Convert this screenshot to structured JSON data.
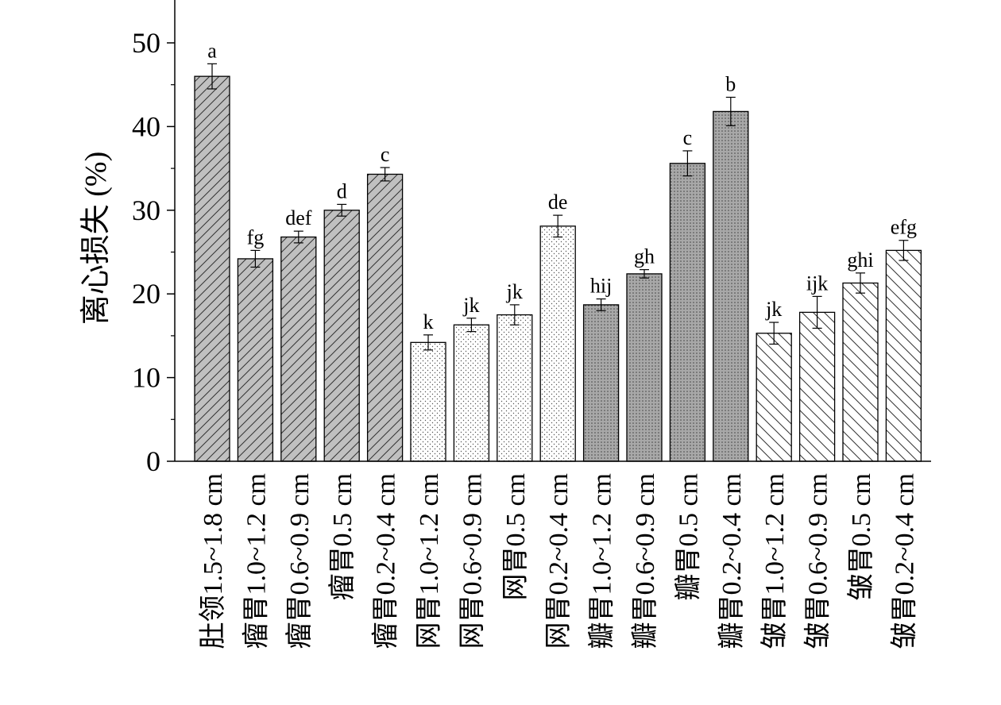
{
  "chart_data": {
    "type": "bar",
    "title": "",
    "xlabel": "",
    "ylabel": "离心损失 (%)",
    "ylim": [
      0,
      55
    ],
    "yticks": [
      "0",
      "10",
      "20",
      "30",
      "40",
      "50"
    ],
    "grid": false,
    "categories": [
      "肚领1.5~1.8 cm",
      "瘤胃1.0~1.2 cm",
      "瘤胃0.6~0.9 cm",
      "瘤胃0.5 cm",
      "瘤胃0.2~0.4 cm",
      "网胃1.0~1.2 cm",
      "网胃0.6~0.9 cm",
      "网胃0.5 cm",
      "网胃0.2~0.4 cm",
      "瓣胃1.0~1.2 cm",
      "瓣胃0.6~0.9 cm",
      "瓣胃0.5 cm",
      "瓣胃0.2~0.4 cm",
      "皱胃1.0~1.2 cm",
      "皱胃0.6~0.9 cm",
      "皱胃0.5 cm",
      "皱胃0.2~0.4 cm"
    ],
    "values": [
      46.0,
      24.2,
      26.8,
      30.0,
      34.3,
      14.2,
      16.3,
      17.5,
      28.1,
      18.7,
      22.4,
      35.6,
      41.8,
      15.3,
      17.8,
      21.3,
      25.2
    ],
    "errors": [
      1.5,
      1.0,
      0.7,
      0.7,
      0.8,
      0.9,
      0.8,
      1.2,
      1.3,
      0.7,
      0.5,
      1.5,
      1.7,
      1.3,
      1.9,
      1.2,
      1.2
    ],
    "letters": [
      "a",
      "fg",
      "def",
      "d",
      "c",
      "k",
      "jk",
      "jk",
      "de",
      "hij",
      "gh",
      "c",
      "b",
      "jk",
      "ijk",
      "ghi",
      "efg"
    ],
    "groups": [
      "rumen-hatch",
      "rumen-hatch",
      "rumen-hatch",
      "rumen-hatch",
      "rumen-hatch",
      "reticulum-dots",
      "reticulum-dots",
      "reticulum-dots",
      "reticulum-dots",
      "omasum-grid",
      "omasum-grid",
      "omasum-grid",
      "omasum-grid",
      "abomasum-hatch",
      "abomasum-hatch",
      "abomasum-hatch",
      "abomasum-hatch"
    ]
  }
}
